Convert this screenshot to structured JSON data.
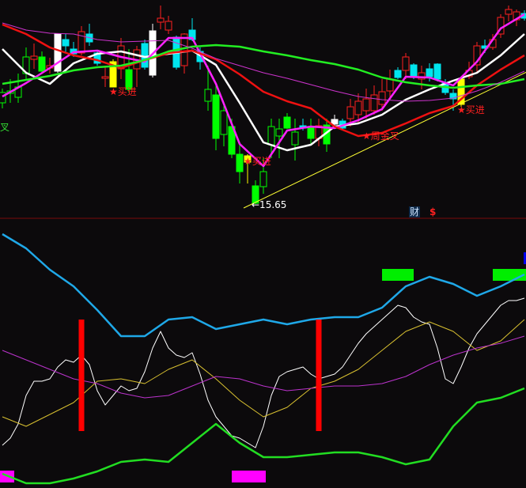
{
  "chart_data": [
    {
      "type": "candlestick",
      "panel": "price",
      "price_range": [
        15.3,
        20.81
      ],
      "style_colors": {
        "r": "#ff2020",
        "g": "#00ff00",
        "gh": "#00ff00",
        "c": "#00e5ee",
        "w": "#ffffff",
        "y": "#ffff00"
      },
      "candles": [
        [
          18.47,
          18.57,
          18.07,
          18.21,
          "gh"
        ],
        [
          18.51,
          18.81,
          18.21,
          18.45,
          "gh"
        ],
        [
          18.61,
          18.95,
          18.21,
          18.35,
          "gh"
        ],
        [
          19.37,
          19.61,
          18.81,
          18.95,
          "gh"
        ],
        [
          19.31,
          19.71,
          19.07,
          19.39,
          "r"
        ],
        [
          19.37,
          19.51,
          18.95,
          19.01,
          "g"
        ],
        [
          19.09,
          19.35,
          18.95,
          19.15,
          "r"
        ],
        [
          19.95,
          19.97,
          18.97,
          19.01,
          "w"
        ],
        [
          19.81,
          19.95,
          19.47,
          19.65,
          "c"
        ],
        [
          19.57,
          19.75,
          19.37,
          19.45,
          "c"
        ],
        [
          19.47,
          20.15,
          19.41,
          20.01,
          "r"
        ],
        [
          19.95,
          20.21,
          19.65,
          19.75,
          "c"
        ],
        [
          19.47,
          19.55,
          19.15,
          19.21,
          "c"
        ],
        [
          18.83,
          19.15,
          18.61,
          18.87,
          "r"
        ],
        [
          19.25,
          19.31,
          18.61,
          18.61,
          "y"
        ],
        [
          19.07,
          19.85,
          18.81,
          19.65,
          "r"
        ],
        [
          19.05,
          19.57,
          18.47,
          18.55,
          "g"
        ],
        [
          19.07,
          19.65,
          18.61,
          19.55,
          "r"
        ],
        [
          19.71,
          19.81,
          19.05,
          19.11,
          "c"
        ],
        [
          20.03,
          20.21,
          18.85,
          18.91,
          "w"
        ],
        [
          20.25,
          20.67,
          20.07,
          20.35,
          "r"
        ],
        [
          20.05,
          20.41,
          19.95,
          20.27,
          "r"
        ],
        [
          19.87,
          19.91,
          19.05,
          19.11,
          "c"
        ],
        [
          19.15,
          19.97,
          18.95,
          19.95,
          "r"
        ],
        [
          20.05,
          20.35,
          19.77,
          19.81,
          "c"
        ],
        [
          19.51,
          19.61,
          19.05,
          19.25,
          "c"
        ],
        [
          18.55,
          19.15,
          18.01,
          18.25,
          "gh"
        ],
        [
          18.41,
          18.65,
          17.01,
          17.31,
          "g"
        ],
        [
          18.01,
          18.21,
          17.11,
          17.41,
          "gh"
        ],
        [
          17.61,
          17.81,
          16.81,
          16.91,
          "g"
        ],
        [
          16.91,
          17.15,
          16.17,
          16.47,
          "g"
        ],
        [
          16.87,
          16.91,
          16.17,
          16.71,
          "y"
        ],
        [
          16.11,
          16.25,
          15.65,
          15.67,
          "g"
        ],
        [
          16.47,
          16.81,
          15.91,
          16.09,
          "gh"
        ],
        [
          17.61,
          17.81,
          16.81,
          17.15,
          "gh"
        ],
        [
          17.55,
          17.81,
          16.81,
          17.37,
          "gh"
        ],
        [
          17.85,
          17.95,
          17.55,
          17.57,
          "g"
        ],
        [
          17.47,
          17.81,
          16.75,
          17.15,
          "gh"
        ],
        [
          17.63,
          17.81,
          17.51,
          17.57,
          "c"
        ],
        [
          17.61,
          17.81,
          17.15,
          17.31,
          "g"
        ],
        [
          17.31,
          17.81,
          17.11,
          17.63,
          "r"
        ],
        [
          17.65,
          17.81,
          16.97,
          17.17,
          "g"
        ],
        [
          17.79,
          17.91,
          17.61,
          17.67,
          "w"
        ],
        [
          17.75,
          17.81,
          17.51,
          17.57,
          "c"
        ],
        [
          17.81,
          18.31,
          17.61,
          18.11,
          "r"
        ],
        [
          17.91,
          18.45,
          17.71,
          18.25,
          "r"
        ],
        [
          18.01,
          18.57,
          17.81,
          18.31,
          "r"
        ],
        [
          18.01,
          18.65,
          17.91,
          18.41,
          "r"
        ],
        [
          18.17,
          18.81,
          18.01,
          18.49,
          "r"
        ],
        [
          18.51,
          19.05,
          18.31,
          18.81,
          "r"
        ],
        [
          19.03,
          19.11,
          18.81,
          18.85,
          "c"
        ],
        [
          19.03,
          19.47,
          18.81,
          19.37,
          "r"
        ],
        [
          19.17,
          19.21,
          18.81,
          18.85,
          "c"
        ],
        [
          18.81,
          19.15,
          18.55,
          18.97,
          "r"
        ],
        [
          19.07,
          19.21,
          18.75,
          18.87,
          "c"
        ],
        [
          19.19,
          19.21,
          18.75,
          18.81,
          "c"
        ],
        [
          18.71,
          18.81,
          18.41,
          18.47,
          "c"
        ],
        [
          18.45,
          18.55,
          18.01,
          18.31,
          "c"
        ],
        [
          18.81,
          18.81,
          18.11,
          18.17,
          "y"
        ],
        [
          18.87,
          19.25,
          18.81,
          19.03,
          "r"
        ],
        [
          19.17,
          19.75,
          18.97,
          19.65,
          "r"
        ],
        [
          19.65,
          19.81,
          19.47,
          19.59,
          "c"
        ],
        [
          19.61,
          19.95,
          19.55,
          19.81,
          "r"
        ],
        [
          19.95,
          20.45,
          19.85,
          20.37,
          "r"
        ],
        [
          20.45,
          20.67,
          20.27,
          20.57,
          "r"
        ],
        [
          20.31,
          20.57,
          20.15,
          20.51,
          "r"
        ],
        [
          20.47,
          20.55,
          20.29,
          20.35,
          "c"
        ]
      ],
      "candle_fields": [
        "open",
        "high",
        "low",
        "close",
        "style"
      ],
      "moving_averages_step": 3,
      "moving_averages": [
        {
          "color": "#ffffff",
          "values": [
            19.57,
            18.97,
            18.69,
            19.21,
            19.45,
            19.51,
            19.37,
            19.45,
            19.53,
            19.17,
            18.21,
            17.21,
            17.01,
            17.15,
            17.61,
            17.69,
            17.91,
            18.29,
            18.55,
            18.77,
            18.97,
            19.41,
            19.95
          ]
        },
        {
          "color": "#ff22ff",
          "values": [
            18.37,
            18.71,
            19.09,
            19.49,
            19.53,
            19.37,
            19.25,
            19.85,
            19.85,
            18.69,
            17.17,
            16.61,
            17.51,
            17.61,
            17.57,
            17.77,
            18.05,
            18.87,
            18.85,
            18.65,
            19.25,
            20.09,
            20.45
          ]
        },
        {
          "color": "#ee1111",
          "values": [
            20.19,
            19.95,
            19.61,
            19.41,
            19.29,
            19.09,
            19.29,
            19.47,
            19.53,
            19.31,
            18.93,
            18.49,
            18.25,
            18.07,
            17.61,
            17.37,
            17.45,
            17.69,
            17.95,
            18.13,
            18.65,
            19.05,
            19.41
          ]
        },
        {
          "color": "#22ee22",
          "values": [
            18.69,
            18.79,
            18.89,
            19.03,
            19.11,
            19.15,
            19.29,
            19.51,
            19.63,
            19.67,
            19.63,
            19.51,
            19.41,
            19.29,
            19.19,
            19.05,
            18.85,
            18.73,
            18.65,
            18.59,
            18.65,
            18.69,
            18.81
          ]
        },
        {
          "color": "#cc33cc",
          "values": [
            20.23,
            20.05,
            19.97,
            19.95,
            19.81,
            19.75,
            19.77,
            19.79,
            19.59,
            19.33,
            19.15,
            18.97,
            18.83,
            18.67,
            18.51,
            18.37,
            18.29,
            18.25,
            18.27,
            18.33,
            18.51,
            18.73,
            19.01
          ]
        }
      ],
      "trendline": {
        "color": "#ffff33",
        "from": {
          "index": 30.5,
          "price": 15.55
        },
        "to": {
          "index": 66.5,
          "price": 19.01
        }
      },
      "low_marker": {
        "label": "15.65",
        "arrow": "←",
        "index": 32,
        "price": 15.65
      },
      "signals": [
        {
          "label": "死叉",
          "index": -1,
          "price": 17.61,
          "color": "#33dd33"
        },
        {
          "label": "★买进",
          "index": 14,
          "price": 18.51,
          "color": "#ff2020"
        },
        {
          "label": "★买进",
          "index": 31,
          "price": 16.75,
          "color": "#ff2020"
        },
        {
          "label": "★周金叉",
          "index": 46,
          "price": 17.39,
          "color": "#ff2020"
        },
        {
          "label": "★买进",
          "index": 58,
          "price": 18.05,
          "color": "#ff2020"
        }
      ]
    },
    {
      "type": "line",
      "panel": "indicator",
      "value_range": [
        0,
        112
      ],
      "series": [
        {
          "color": "#1fa8e8",
          "step": 3,
          "width": 2.5,
          "values": [
            107,
            101,
            92,
            85,
            75,
            64,
            64,
            71,
            72,
            67,
            69,
            71,
            69,
            71,
            72,
            72,
            76,
            85,
            89,
            86,
            81,
            85,
            90
          ]
        },
        {
          "color": "#ffffff",
          "step": 1,
          "width": 1,
          "values": [
            18,
            21,
            27,
            39,
            45,
            45,
            46,
            51,
            54,
            53,
            56,
            52,
            41,
            35,
            39,
            43,
            41,
            42,
            49,
            59,
            66,
            59,
            56,
            55,
            57,
            48,
            37,
            30,
            26,
            22,
            21,
            19,
            17,
            26,
            39,
            47,
            49,
            50,
            51,
            48,
            46,
            47,
            48,
            51,
            56,
            61,
            65,
            68,
            71,
            74,
            77,
            76,
            72,
            70,
            69,
            59,
            46,
            44,
            51,
            59,
            65,
            69,
            73,
            77,
            79,
            79,
            80
          ]
        },
        {
          "color": "#d8c030",
          "step": 3,
          "width": 1,
          "values": [
            30,
            26,
            31,
            36,
            45,
            46,
            44,
            50,
            54,
            46,
            37,
            30,
            34,
            42,
            45,
            50,
            58,
            66,
            70,
            66,
            58,
            62,
            71
          ]
        },
        {
          "color": "#bb33cc",
          "step": 3,
          "width": 1,
          "values": [
            58,
            54,
            50,
            46,
            44,
            40,
            38,
            39,
            43,
            47,
            46,
            43,
            41,
            42,
            43,
            43,
            44,
            47,
            52,
            56,
            59,
            61,
            64
          ]
        },
        {
          "color": "#22dd22",
          "step": 3,
          "width": 2.5,
          "values": [
            6,
            2,
            2,
            4,
            7,
            11,
            12,
            11,
            19,
            27,
            19,
            13,
            13,
            14,
            15,
            15,
            13,
            10,
            12,
            26,
            36,
            38,
            42
          ]
        }
      ],
      "red_bars": {
        "color": "#ff0000",
        "items": [
          {
            "index": 10,
            "from": 24,
            "to": 71
          },
          {
            "index": 40,
            "from": 24,
            "to": 71
          }
        ]
      },
      "top_blocks": {
        "color": "#00ee00",
        "level": 90,
        "items": [
          {
            "from": 48,
            "to": 52
          },
          {
            "from": 62,
            "to": 66.5
          }
        ]
      },
      "corner_block": {
        "color": "#0000ee",
        "level": 97,
        "items": [
          {
            "from": 65.9,
            "to": 66.5
          }
        ]
      },
      "bottom_blocks": {
        "color": "#ff00ff",
        "level": 5,
        "items": [
          {
            "from": -0.3,
            "to": 1.5
          },
          {
            "from": 29,
            "to": 33.3
          }
        ]
      }
    }
  ],
  "footer": {
    "finance_label": "财",
    "dollar_label": "$"
  }
}
